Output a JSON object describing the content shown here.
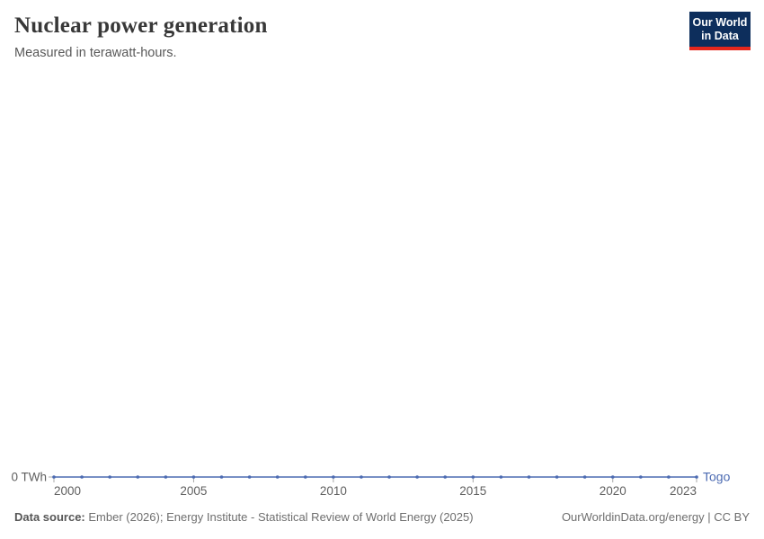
{
  "header": {
    "title": "Nuclear power generation",
    "subtitle": "Measured in terawatt-hours."
  },
  "logo": {
    "line1": "Our World",
    "line2": "in Data",
    "bg_color": "#0d2e5c",
    "bar_color": "#e5271c"
  },
  "chart_data": {
    "type": "line",
    "title": "Nuclear power generation",
    "ylabel": "terawatt-hours",
    "y_zero_label": "0 TWh",
    "xlim": [
      2000,
      2023
    ],
    "ylim": [
      0,
      1
    ],
    "grid": false,
    "legend_position": "end-of-line",
    "x_ticks": [
      2000,
      2005,
      2010,
      2015,
      2020,
      2023
    ],
    "series": [
      {
        "name": "Togo",
        "color": "#4c6bb2",
        "x": [
          2000,
          2001,
          2002,
          2003,
          2004,
          2005,
          2006,
          2007,
          2008,
          2009,
          2010,
          2011,
          2012,
          2013,
          2014,
          2015,
          2016,
          2017,
          2018,
          2019,
          2020,
          2021,
          2022,
          2023
        ],
        "values": [
          0,
          0,
          0,
          0,
          0,
          0,
          0,
          0,
          0,
          0,
          0,
          0,
          0,
          0,
          0,
          0,
          0,
          0,
          0,
          0,
          0,
          0,
          0,
          0
        ]
      }
    ]
  },
  "footer": {
    "datasource_label": "Data source:",
    "datasource_text": " Ember (2026); Energy Institute - Statistical Review of World Energy (2025)",
    "link_text": "OurWorldinData.org/energy | CC BY"
  }
}
